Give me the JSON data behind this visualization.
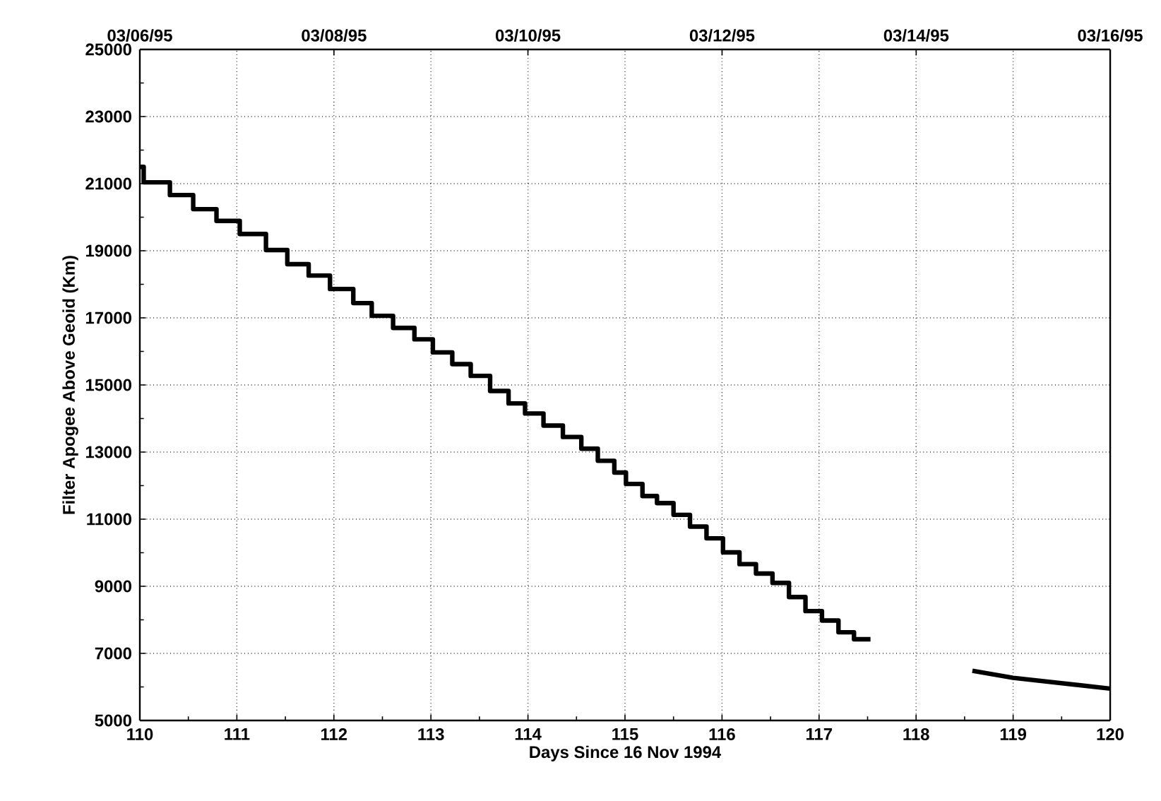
{
  "chart_data": {
    "type": "line",
    "xlabel": "Days Since 16 Nov 1994",
    "ylabel": "Filter Apogee Above Geoid (Km)",
    "xlim": [
      110,
      120
    ],
    "xticks": [
      110,
      111,
      112,
      113,
      114,
      115,
      116,
      117,
      118,
      119,
      120
    ],
    "ylim": [
      5000,
      25000
    ],
    "yticks": [
      5000,
      7000,
      9000,
      11000,
      13000,
      15000,
      17000,
      19000,
      21000,
      23000,
      25000
    ],
    "x2lim": [
      "1995-03-06",
      "1995-03-16"
    ],
    "x2ticks": [
      {
        "value": "1995-03-06",
        "label": "03/06/95"
      },
      {
        "value": "1995-03-08",
        "label": "03/08/95"
      },
      {
        "value": "1995-03-10",
        "label": "03/10/95"
      },
      {
        "value": "1995-03-12",
        "label": "03/12/95"
      },
      {
        "value": "1995-03-14",
        "label": "03/14/95"
      },
      {
        "value": "1995-03-16",
        "label": "03/16/95"
      }
    ],
    "grid": true,
    "series": [
      {
        "type": "step",
        "color": "#000000",
        "x": [
          110,
          110.04,
          110.31,
          110.55,
          110.79,
          111.03,
          111.3,
          111.52,
          111.74,
          111.96,
          112.2,
          112.39,
          112.61,
          112.83,
          113.02,
          113.22,
          113.41,
          113.61,
          113.8,
          113.97,
          114.16,
          114.36,
          114.55,
          114.72,
          114.89,
          115.01,
          115.18,
          115.33,
          115.5,
          115.67,
          115.84,
          116.01,
          116.18,
          116.35,
          116.52,
          116.69,
          116.86,
          117.03,
          117.2,
          117.36,
          117.53
        ],
        "values": [
          21500,
          21040,
          20660,
          20240,
          19890,
          19500,
          19020,
          18600,
          18260,
          17860,
          17440,
          17060,
          16700,
          16360,
          15970,
          15620,
          15270,
          14820,
          14450,
          14150,
          13790,
          13450,
          13100,
          12740,
          12390,
          12050,
          11690,
          11480,
          11130,
          10780,
          10430,
          10010,
          9660,
          9380,
          9100,
          8680,
          8260,
          7980,
          7630,
          7420,
          7420
        ]
      },
      {
        "color": "#000000",
        "x": [
          118.58,
          119,
          120
        ],
        "values": [
          6480,
          6270,
          5950
        ]
      }
    ]
  }
}
